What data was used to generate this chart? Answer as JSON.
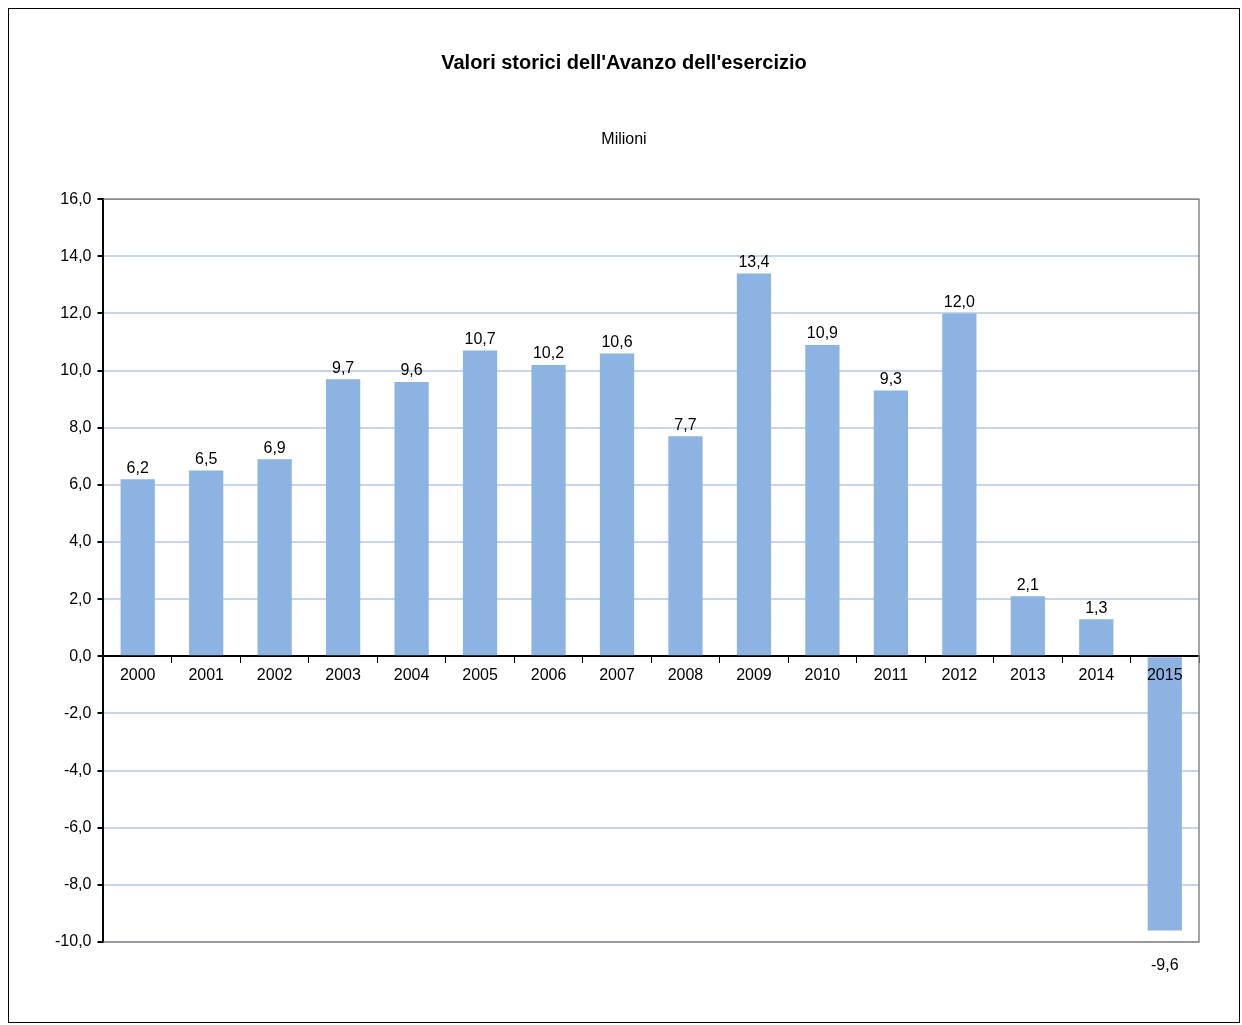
{
  "chart_data": {
    "type": "bar",
    "title": "Valori storici dell'Avanzo dell'esercizio",
    "subtitle": "Milioni",
    "categories": [
      "2000",
      "2001",
      "2002",
      "2003",
      "2004",
      "2005",
      "2006",
      "2007",
      "2008",
      "2009",
      "2010",
      "2011",
      "2012",
      "2013",
      "2014",
      "2015"
    ],
    "values": [
      6.2,
      6.5,
      6.9,
      9.7,
      9.6,
      10.7,
      10.2,
      10.6,
      7.7,
      13.4,
      10.9,
      9.3,
      12.0,
      2.1,
      1.3,
      -9.6
    ],
    "value_labels": [
      "6,2",
      "6,5",
      "6,9",
      "9,7",
      "9,6",
      "10,7",
      "10,2",
      "10,6",
      "7,7",
      "13,4",
      "10,9",
      "9,3",
      "12,0",
      "2,1",
      "1,3",
      "-9,6"
    ],
    "color": "#8db3e2",
    "ylim": [
      -10,
      16
    ],
    "yticks": [
      {
        "value": -10,
        "label": "-10,0"
      },
      {
        "value": -8,
        "label": "-8,0"
      },
      {
        "value": -6,
        "label": "-6,0"
      },
      {
        "value": -4,
        "label": "-4,0"
      },
      {
        "value": -2,
        "label": "-2,0"
      },
      {
        "value": 0,
        "label": "0,0"
      },
      {
        "value": 2,
        "label": "2,0"
      },
      {
        "value": 4,
        "label": "4,0"
      },
      {
        "value": 6,
        "label": "6,0"
      },
      {
        "value": 8,
        "label": "8,0"
      },
      {
        "value": 10,
        "label": "10,0"
      },
      {
        "value": 12,
        "label": "12,0"
      },
      {
        "value": 14,
        "label": "14,0"
      },
      {
        "value": 16,
        "label": "16,0"
      }
    ],
    "grid": "y",
    "legend": false
  }
}
